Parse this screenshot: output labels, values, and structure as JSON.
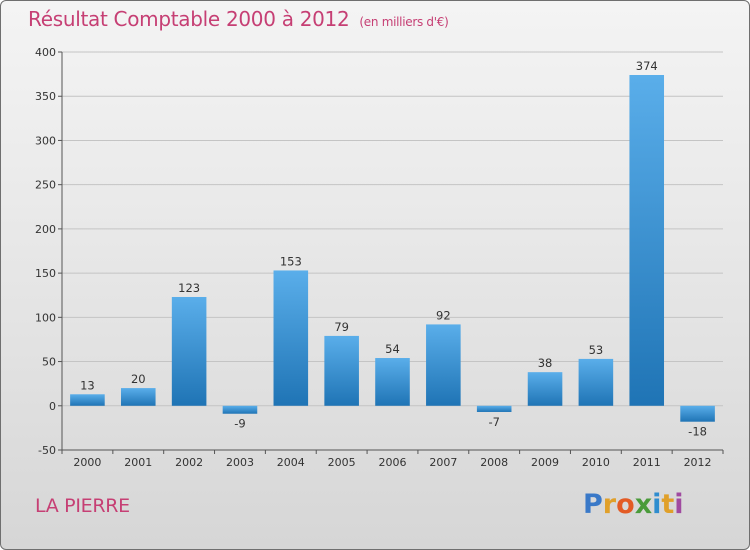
{
  "header": {
    "title": "Résultat Comptable 2000 à 2012",
    "subtitle": "(en milliers d'€)"
  },
  "footer": {
    "commune": "LA PIERRE",
    "logo": [
      "P",
      "r",
      "o",
      "x",
      "i",
      "t",
      "i"
    ]
  },
  "colors": {
    "title": "#c63f74",
    "bar_top": "#5aaeea",
    "bar_bottom": "#1f74b5"
  },
  "chart_data": {
    "type": "bar",
    "title": "Résultat Comptable 2000 à 2012",
    "subtitle": "(en milliers d'€)",
    "categories": [
      "2000",
      "2001",
      "2002",
      "2003",
      "2004",
      "2005",
      "2006",
      "2007",
      "2008",
      "2009",
      "2010",
      "2011",
      "2012"
    ],
    "values": [
      13,
      20,
      123,
      -9,
      153,
      79,
      54,
      92,
      -7,
      38,
      53,
      374,
      -18
    ],
    "data_labels": [
      "13",
      "20",
      "123",
      "-9",
      "153",
      "79",
      "54",
      "92",
      "-7",
      "38",
      "53",
      "374",
      "-18"
    ],
    "ylim": [
      -50,
      400
    ],
    "yticks": [
      -50,
      0,
      50,
      100,
      150,
      200,
      250,
      300,
      350,
      400
    ],
    "grid": true,
    "xlabel": "",
    "ylabel": ""
  }
}
